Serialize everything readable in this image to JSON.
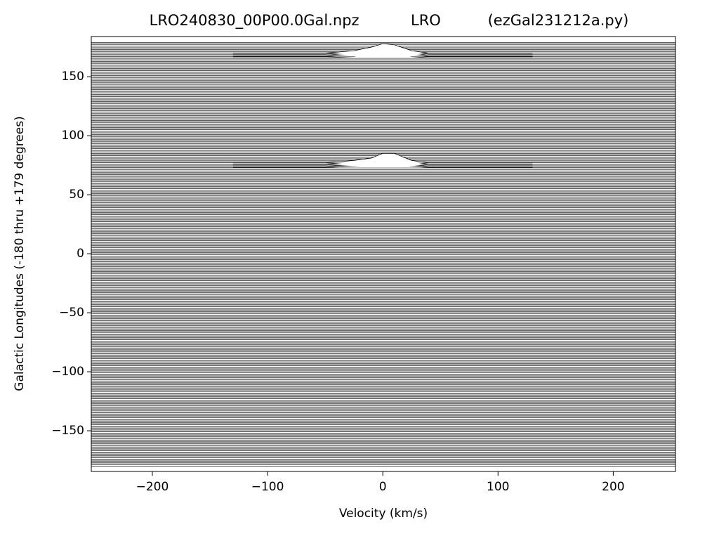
{
  "chart_data": {
    "type": "ridgeline",
    "title": "LRO240830_00P00.0Gal.npz           LRO          (ezGal231212a.py)",
    "x_label": "Velocity (km/s)",
    "y_label": "Galactic Longitudes   (-180 thru +179 degrees)",
    "xlim": [
      -253,
      254
    ],
    "ylim": [
      -184.5,
      184
    ],
    "xticks": [
      {
        "value": -200,
        "label": "−200"
      },
      {
        "value": -100,
        "label": "−100"
      },
      0,
      100,
      200
    ],
    "yticks": [
      {
        "value": -150,
        "label": "−150"
      },
      {
        "value": -100,
        "label": "−100"
      },
      {
        "value": -50,
        "label": "−50"
      },
      0,
      50,
      100,
      150
    ],
    "color": "#000000",
    "longitudes": [
      -180,
      -179,
      -178,
      -177,
      -176,
      -175,
      -174,
      -173,
      -172,
      -171,
      -170,
      -169,
      -168,
      -167,
      -166,
      -165,
      -164,
      -163,
      -162,
      -161,
      -160,
      -159,
      -158,
      -157,
      -156,
      -155,
      -154,
      -153,
      -152,
      -151,
      -150,
      -149,
      -148,
      -147,
      -146,
      -145,
      -144,
      -143,
      -142,
      -141,
      -140,
      -139,
      -138,
      -137,
      -136,
      -135,
      -134,
      -133,
      -132,
      -131,
      -130,
      -129,
      -128,
      -127,
      -126,
      -125,
      -124,
      -123,
      -122,
      -121,
      -120,
      -119,
      -118,
      -117,
      -116,
      -115,
      -114,
      -113,
      -112,
      -111,
      -110,
      -109,
      -108,
      -107,
      -106,
      -105,
      -104,
      -103,
      -102,
      -101,
      -100,
      -99,
      -98,
      -97,
      -96,
      -95,
      -94,
      -93,
      -92,
      -91,
      -90,
      -89,
      -88,
      -87,
      -86,
      -85,
      -84,
      -83,
      -82,
      -81,
      -80,
      -79,
      -78,
      -77,
      -76,
      -75,
      -74,
      -73,
      -72,
      -71,
      -70,
      -69,
      -68,
      -67,
      -66,
      -65,
      -64,
      -63,
      -62,
      -61,
      -60,
      -59,
      -58,
      -57,
      -56,
      -55,
      -54,
      -53,
      -52,
      -51,
      -50,
      -49,
      -48,
      -47,
      -46,
      -45,
      -44,
      -43,
      -42,
      -41,
      -40,
      -39,
      -38,
      -37,
      -36,
      -35,
      -34,
      -33,
      -32,
      -31,
      -30,
      -29,
      -28,
      -27,
      -26,
      -25,
      -24,
      -23,
      -22,
      -21,
      -20,
      -19,
      -18,
      -17,
      -16,
      -15,
      -14,
      -13,
      -12,
      -11,
      -10,
      -9,
      -8,
      -7,
      -6,
      -5,
      -4,
      -3,
      -2,
      -1,
      0,
      1,
      2,
      3,
      4,
      5,
      6,
      7,
      8,
      9,
      10,
      11,
      12,
      13,
      14,
      15,
      16,
      17,
      18,
      19,
      20,
      21,
      22,
      23,
      24,
      25,
      26,
      27,
      28,
      29,
      30,
      31,
      32,
      33,
      34,
      35,
      36,
      37,
      38,
      39,
      40,
      41,
      42,
      43,
      44,
      45,
      46,
      47,
      48,
      49,
      50,
      51,
      52,
      53,
      54,
      55,
      56,
      57,
      58,
      59,
      60,
      61,
      62,
      63,
      64,
      65,
      66,
      67,
      68,
      69,
      70,
      71,
      72,
      73,
      74,
      75,
      76,
      77,
      78,
      79,
      80,
      81,
      82,
      83,
      84,
      85,
      86,
      87,
      88,
      89,
      90,
      91,
      92,
      93,
      94,
      95,
      96,
      97,
      98,
      99,
      100,
      101,
      102,
      103,
      104,
      105,
      106,
      107,
      108,
      109,
      110,
      111,
      112,
      113,
      114,
      115,
      116,
      117,
      118,
      119,
      120,
      121,
      122,
      123,
      124,
      125,
      126,
      127,
      128,
      129,
      130,
      131,
      132,
      133,
      134,
      135,
      136,
      137,
      138,
      139,
      140,
      141,
      142,
      143,
      144,
      145,
      146,
      147,
      148,
      149,
      150,
      151,
      152,
      153,
      154,
      155,
      156,
      157,
      158,
      159,
      160,
      161,
      162,
      163,
      164,
      165,
      166,
      167,
      168,
      169,
      170,
      171,
      172,
      173,
      174,
      175,
      176,
      177,
      178,
      179
    ],
    "x": [
      -130,
      -50,
      -25,
      -10,
      0,
      10,
      25,
      40,
      130
    ],
    "profiles": [
      {
        "values": [
          73,
          73,
          74,
          75,
          77,
          76,
          74,
          73,
          73
        ]
      },
      {
        "values": [
          74,
          74,
          75.5,
          77,
          79,
          78.5,
          75.5,
          74,
          74
        ]
      },
      {
        "values": [
          75,
          75,
          77,
          79,
          81,
          81,
          77,
          75,
          75
        ]
      },
      {
        "values": [
          76,
          76,
          78,
          80,
          83,
          83,
          78,
          76,
          76
        ]
      },
      {
        "values": [
          77,
          77,
          79,
          81,
          85,
          85,
          79,
          77,
          77
        ]
      },
      {
        "values": [
          166,
          166,
          167,
          169,
          171,
          170,
          167,
          166,
          166
        ]
      },
      {
        "values": [
          167,
          167,
          168.5,
          171,
          173,
          172,
          168.5,
          167,
          167
        ]
      },
      {
        "values": [
          168,
          168,
          170,
          173,
          175,
          174,
          170,
          168,
          168
        ]
      },
      {
        "values": [
          169,
          169,
          171,
          174,
          177,
          176,
          171,
          169,
          169
        ]
      },
      {
        "values": [
          170,
          170,
          172,
          175,
          178,
          177,
          172,
          170,
          170
        ]
      }
    ]
  }
}
